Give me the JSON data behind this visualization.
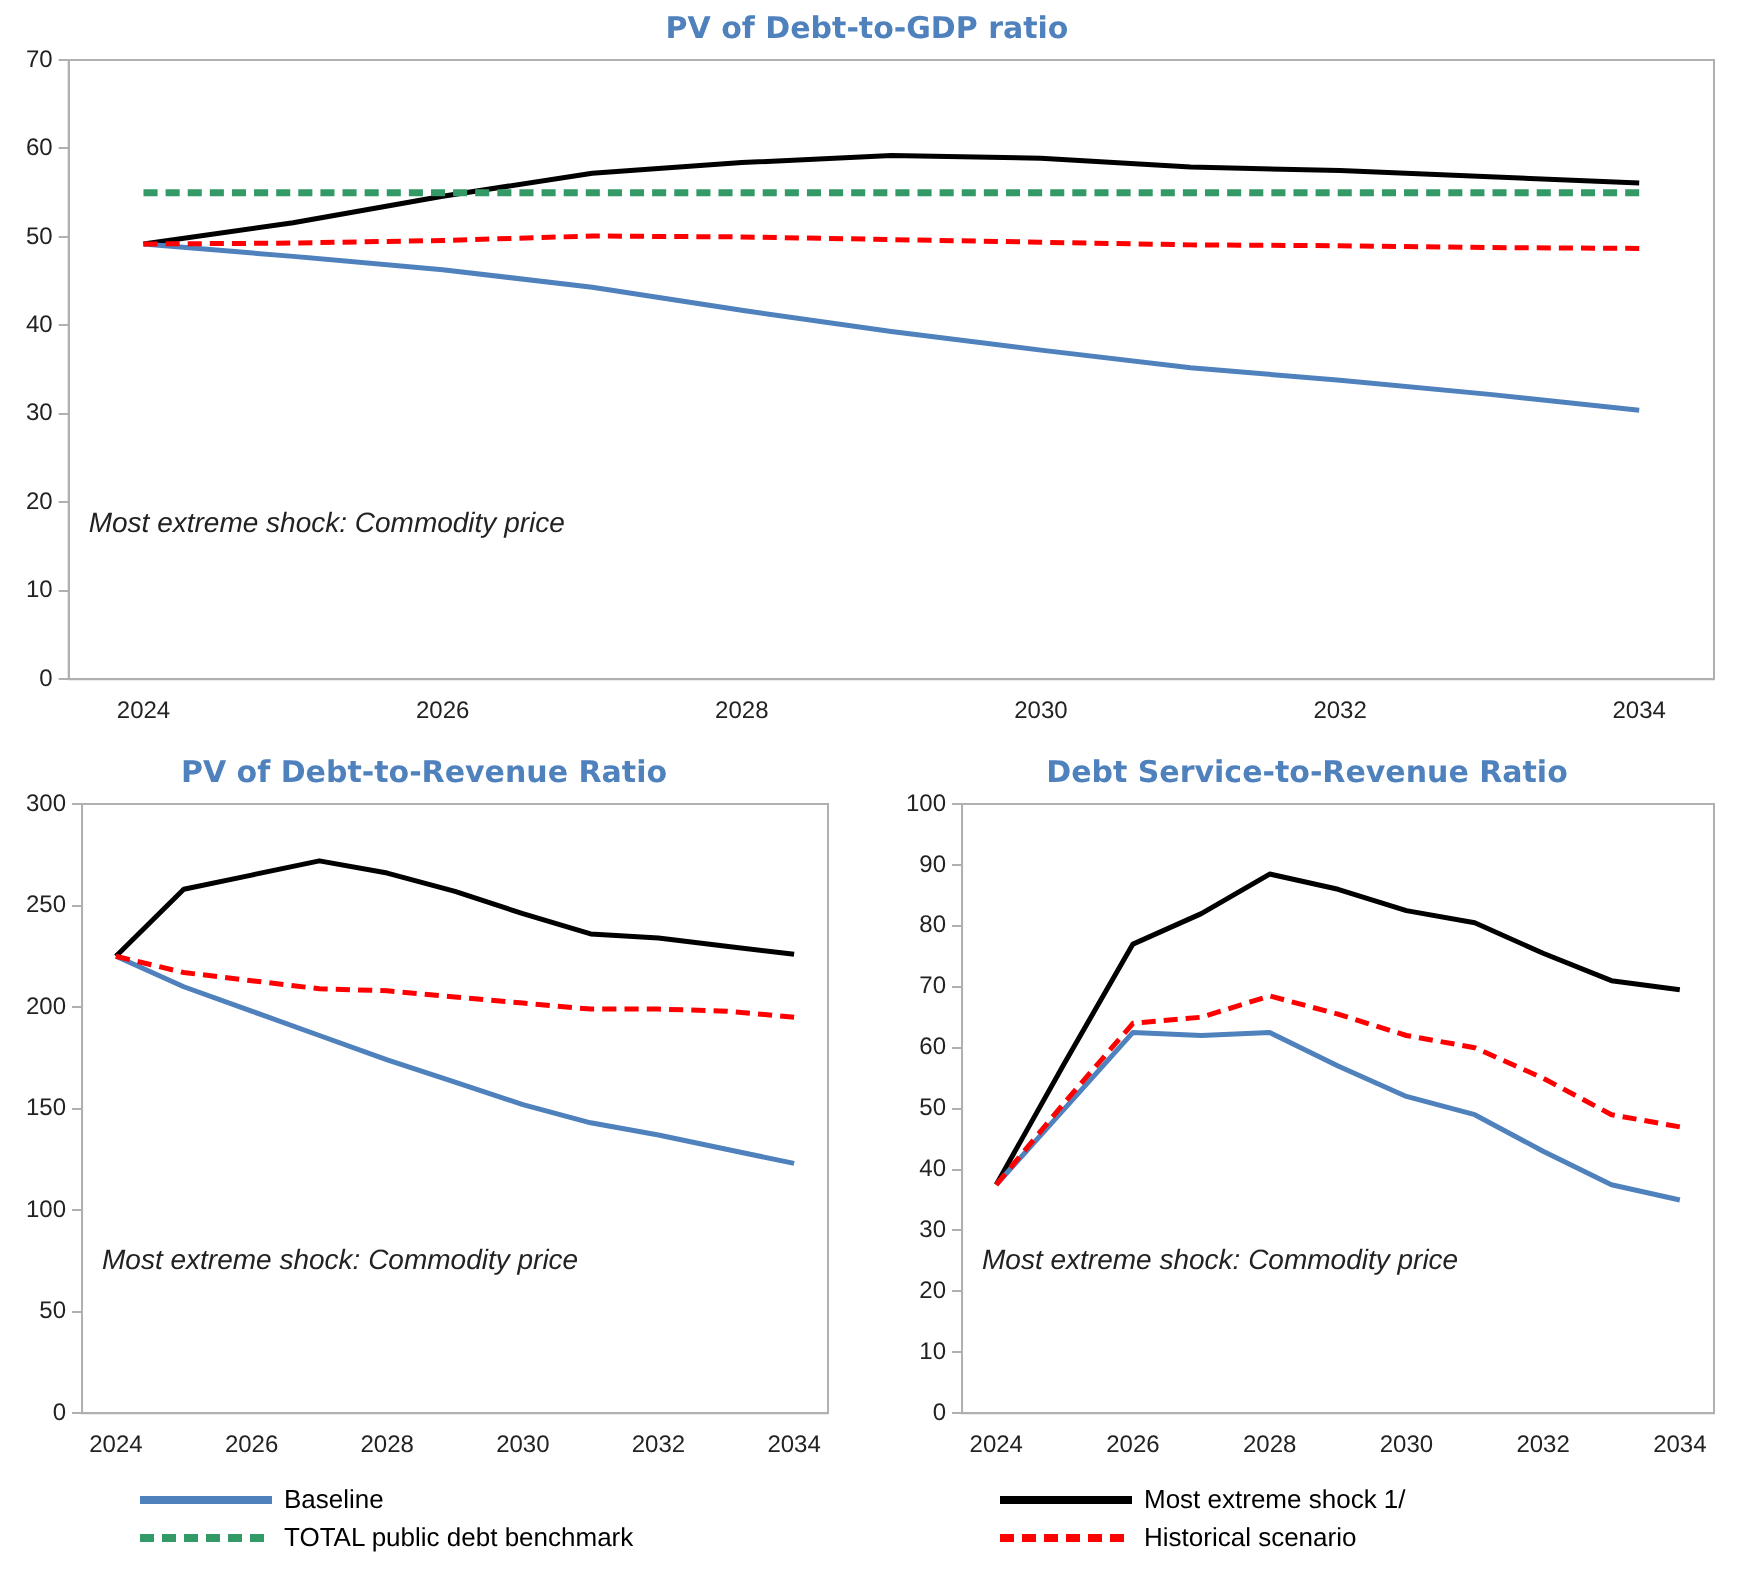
{
  "chart_data": [
    {
      "type": "line",
      "title": "PV of Debt-to-GDP ratio",
      "categories": [
        "2024",
        null,
        "2026",
        null,
        "2028",
        null,
        "2030",
        null,
        "2032",
        null,
        "2034"
      ],
      "ylim": [
        0,
        70
      ],
      "yticks": [
        0,
        10,
        20,
        30,
        40,
        50,
        60,
        70
      ],
      "grid": false,
      "legend": "bottom",
      "annotations": [
        "Most extreme shock: Commodity price"
      ],
      "series": [
        {
          "name": "Baseline",
          "color": "#4f81bd",
          "line_style": "solid",
          "values": [
            49.2,
            47.8,
            46.3,
            44.3,
            41.7,
            39.3,
            37.2,
            35.2,
            33.8,
            32.2,
            30.4
          ]
        },
        {
          "name": "Most extreme shock 1/",
          "color": "#000000",
          "line_style": "solid",
          "values": [
            49.2,
            51.6,
            54.6,
            57.2,
            58.4,
            59.2,
            58.9,
            57.9,
            57.5,
            56.8,
            56.1
          ]
        },
        {
          "name": "TOTAL public debt benchmark",
          "color": "#339966",
          "line_style": "dashed",
          "values": [
            55,
            55,
            55,
            55,
            55,
            55,
            55,
            55,
            55,
            55,
            55
          ]
        },
        {
          "name": "Historical scenario",
          "color": "#ff0000",
          "line_style": "dashed",
          "values": [
            49.2,
            49.3,
            49.6,
            50.1,
            50.0,
            49.7,
            49.4,
            49.1,
            49.0,
            48.8,
            48.7
          ]
        }
      ]
    },
    {
      "type": "line",
      "title": "PV of Debt-to-Revenue Ratio",
      "categories": [
        "2024",
        null,
        "2026",
        null,
        "2028",
        null,
        "2030",
        null,
        "2032",
        null,
        "2034"
      ],
      "ylim": [
        0,
        300
      ],
      "yticks": [
        0,
        50,
        100,
        150,
        200,
        250,
        300
      ],
      "grid": false,
      "annotations": [
        "Most extreme shock: Commodity price"
      ],
      "series": [
        {
          "color": "#4f81bd",
          "line_style": "solid",
          "values": [
            225,
            210,
            198,
            186,
            174,
            163,
            152,
            143,
            137,
            130,
            123
          ]
        },
        {
          "color": "#000000",
          "line_style": "solid",
          "values": [
            225,
            258,
            265,
            272,
            266,
            257,
            246,
            236,
            234,
            230,
            226
          ]
        },
        {
          "color": "#ff0000",
          "line_style": "dashed",
          "values": [
            225,
            217,
            213,
            209,
            208,
            205,
            202,
            199,
            199,
            198,
            195
          ]
        }
      ]
    },
    {
      "type": "line",
      "title": "Debt Service-to-Revenue Ratio",
      "categories": [
        "2024",
        null,
        "2026",
        null,
        "2028",
        null,
        "2030",
        null,
        "2032",
        null,
        "2034"
      ],
      "ylim": [
        0,
        100
      ],
      "yticks": [
        0,
        10,
        20,
        30,
        40,
        50,
        60,
        70,
        80,
        90,
        100
      ],
      "grid": false,
      "annotations": [
        "Most extreme shock: Commodity price"
      ],
      "series": [
        {
          "color": "#4f81bd",
          "line_style": "solid",
          "values": [
            37.5,
            50,
            62.5,
            62,
            62.5,
            57,
            52,
            49,
            43,
            37.5,
            35
          ]
        },
        {
          "color": "#000000",
          "line_style": "solid",
          "values": [
            37.5,
            57.5,
            77,
            82,
            88.5,
            86,
            82.5,
            80.5,
            75.5,
            71,
            69.5
          ]
        },
        {
          "color": "#ff0000",
          "line_style": "dashed",
          "values": [
            37.5,
            51,
            64,
            65,
            68.5,
            65.5,
            62,
            60,
            55,
            49,
            47
          ]
        }
      ]
    }
  ]
}
